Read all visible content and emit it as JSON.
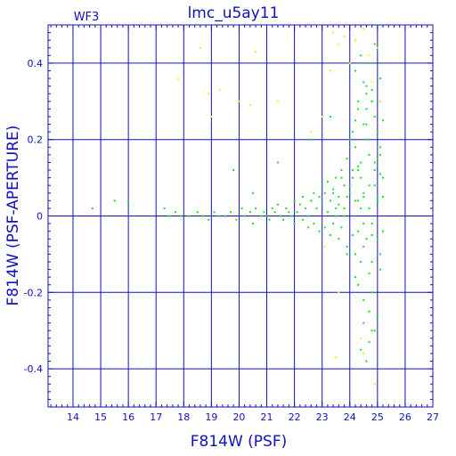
{
  "chart_data": {
    "type": "scatter",
    "title": "lmc_u5ay11",
    "corner_label": "WF3",
    "xlabel": "F814W (PSF)",
    "ylabel": "F814W (PSF-APERTURE)",
    "xlim": [
      13.1,
      27.0
    ],
    "ylim": [
      -0.5,
      0.5
    ],
    "xticks": [
      14,
      15,
      16,
      17,
      18,
      19,
      20,
      21,
      22,
      23,
      24,
      25,
      26,
      27
    ],
    "yticks": [
      -0.4,
      -0.2,
      0,
      0.2,
      0.4
    ],
    "ytick_labels": [
      "-0.4",
      "-0.2",
      "0",
      "0.2",
      "0.4"
    ],
    "grid": true,
    "colors": {
      "frame": "#1010c0",
      "green_points": "#22dd22",
      "yellow_points": "#eeee22"
    },
    "series": [
      {
        "color": "green",
        "x": [
          14.7,
          15.5,
          16.0,
          17.3,
          17.5,
          17.7,
          17.9,
          18.2,
          18.5,
          18.7,
          18.9,
          19.1,
          19.3,
          19.5,
          19.7,
          19.9,
          20.1,
          20.2,
          20.4,
          20.5,
          20.6,
          20.8,
          20.9,
          21.0,
          21.1,
          21.2,
          21.3,
          21.4,
          21.5,
          21.6,
          21.7,
          21.8,
          21.9,
          22.0,
          22.0,
          22.1,
          22.2,
          22.3,
          22.3,
          22.4,
          22.5,
          22.5,
          22.6,
          22.7,
          22.7,
          22.8,
          22.9,
          22.9,
          23.0,
          23.0,
          23.1,
          23.1,
          23.2,
          23.2,
          23.3,
          23.3,
          23.4,
          23.4,
          23.5,
          23.5,
          23.6,
          23.6,
          23.7,
          23.7,
          23.8,
          23.8,
          23.9,
          23.9,
          24.0,
          24.0,
          24.1,
          24.1,
          24.2,
          24.2,
          24.3,
          24.3,
          24.4,
          24.4,
          24.5,
          24.5,
          24.6,
          24.6,
          24.7,
          24.7,
          24.8,
          24.8,
          24.9,
          24.9,
          25.0,
          25.0,
          25.1,
          25.1,
          25.2,
          25.2,
          24.2,
          24.4,
          24.6,
          24.8,
          25.0,
          25.2,
          24.3,
          24.5,
          24.7,
          24.9,
          25.1,
          24.1,
          24.6,
          24.9,
          25.1,
          24.3,
          24.7,
          25.0,
          24.5,
          24.8,
          25.2,
          24.2,
          24.6,
          24.4,
          24.9,
          25.1,
          23.6,
          23.9,
          24.1,
          23.4,
          23.7,
          24.0,
          23.5,
          23.8,
          24.2,
          24.5,
          24.7,
          25.0,
          24.3,
          24.6,
          24.8,
          24.4,
          24.9,
          24.7,
          25.1,
          24.5,
          24.8,
          24.3,
          24.6,
          24.9,
          24.5,
          24.7,
          25.0,
          24.4,
          24.8,
          24.6,
          23.9,
          24.2,
          20.5,
          21.4,
          19.8,
          22.6,
          23.3,
          24.0,
          24.5,
          24.8,
          25.1,
          23.8,
          24.3
        ],
        "y": [
          0.02,
          0.04,
          0.04,
          0.02,
          0.0,
          0.01,
          0.0,
          0.0,
          0.01,
          0.0,
          -0.01,
          0.01,
          0.0,
          0.0,
          0.01,
          -0.01,
          0.02,
          0.0,
          0.01,
          -0.02,
          0.02,
          0.0,
          0.01,
          0.0,
          -0.01,
          0.02,
          0.01,
          0.03,
          0.0,
          -0.01,
          0.02,
          0.01,
          0.0,
          0.04,
          -0.02,
          0.01,
          0.03,
          -0.01,
          0.05,
          0.02,
          0.0,
          -0.03,
          0.04,
          0.06,
          -0.02,
          0.02,
          0.05,
          -0.04,
          0.03,
          0.08,
          -0.03,
          0.06,
          0.01,
          0.09,
          -0.05,
          0.04,
          0.07,
          -0.02,
          0.1,
          0.02,
          -0.06,
          0.05,
          0.12,
          -0.03,
          0.08,
          0.0,
          0.15,
          -0.08,
          0.06,
          0.2,
          -0.05,
          0.1,
          0.25,
          -0.1,
          0.04,
          0.3,
          -0.12,
          0.14,
          0.35,
          -0.02,
          0.2,
          0.4,
          -0.15,
          0.08,
          0.3,
          -0.2,
          0.12,
          0.45,
          -0.06,
          0.22,
          0.18,
          -0.1,
          0.25,
          0.05,
          0.38,
          0.42,
          0.28,
          0.33,
          0.15,
          0.1,
          -0.18,
          -0.22,
          -0.25,
          -0.3,
          -0.14,
          0.22,
          0.32,
          0.26,
          0.36,
          0.12,
          0.16,
          0.05,
          -0.08,
          -0.12,
          -0.04,
          0.18,
          0.24,
          0.02,
          0.08,
          0.3,
          0.03,
          0.05,
          0.12,
          0.06,
          0.1,
          0.08,
          0.0,
          0.02,
          0.04,
          0.06,
          0.02,
          0.04,
          -0.04,
          -0.06,
          -0.02,
          0.1,
          0.14,
          0.2,
          0.16,
          0.24,
          0.3,
          0.28,
          0.34,
          0.4,
          -0.28,
          -0.33,
          -0.26,
          -0.35,
          -0.3,
          -0.38,
          -0.1,
          -0.16,
          0.06,
          0.14,
          0.12,
          0.2,
          0.26,
          0.18,
          0.05,
          -0.05,
          0.11,
          0.0,
          0.13
        ],
        "name": ""
      },
      {
        "color": "yellow",
        "x": [
          17.8,
          18.6,
          18.9,
          19.0,
          19.3,
          20.0,
          20.4,
          20.6,
          21.4,
          22.6,
          23.0,
          23.3,
          23.4,
          23.6,
          23.8,
          24.0,
          24.2,
          24.5,
          24.7,
          24.8,
          25.0,
          25.1,
          23.1,
          23.6,
          24.4,
          24.9,
          24.5,
          23.5
        ],
        "y": [
          0.36,
          0.44,
          0.32,
          0.26,
          0.33,
          0.3,
          0.29,
          0.43,
          0.3,
          0.22,
          0.26,
          0.38,
          0.48,
          0.45,
          0.47,
          0.4,
          0.46,
          0.49,
          0.42,
          0.35,
          0.44,
          0.3,
          -0.08,
          -0.2,
          -0.32,
          -0.44,
          -0.36,
          -0.37
        ],
        "name": ""
      }
    ]
  }
}
